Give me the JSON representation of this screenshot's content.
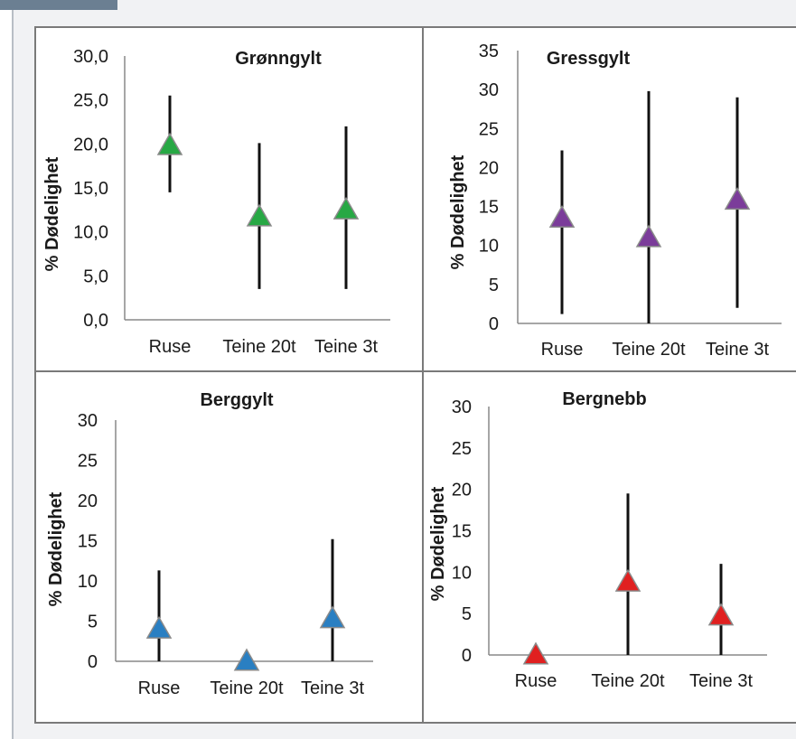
{
  "chart_data": [
    {
      "type": "scatter",
      "title": "Grønngylt",
      "ylabel": "% Dødelighet",
      "categories": [
        "Ruse",
        "Teine 20t",
        "Teine 3t"
      ],
      "ylim": [
        0,
        30
      ],
      "yticks": [
        "0,0",
        "5,0",
        "10,0",
        "15,0",
        "20,0",
        "25,0",
        "30,0"
      ],
      "values": [
        19.8,
        11.7,
        12.5
      ],
      "error_low": [
        14.5,
        3.5,
        3.5
      ],
      "error_high": [
        25.5,
        20.1,
        22.0
      ],
      "marker": "triangle",
      "color": "#27a844"
    },
    {
      "type": "scatter",
      "title": "Gressgylt",
      "ylabel": "% Dødelighet",
      "categories": [
        "Ruse",
        "Teine 20t",
        "Teine 3t"
      ],
      "ylim": [
        0,
        35
      ],
      "yticks": [
        "0",
        "5",
        "10",
        "15",
        "20",
        "25",
        "30",
        "35"
      ],
      "values": [
        13.5,
        11.0,
        15.8
      ],
      "error_low": [
        1.2,
        0.0,
        2.0
      ],
      "error_high": [
        22.2,
        29.8,
        29.0
      ],
      "marker": "triangle",
      "color": "#7b3c9a"
    },
    {
      "type": "scatter",
      "title": "Berggylt",
      "ylabel": "% Dødelighet",
      "categories": [
        "Ruse",
        "Teine 20t",
        "Teine 3t"
      ],
      "ylim": [
        0,
        30
      ],
      "yticks": [
        "0",
        "5",
        "10",
        "15",
        "20",
        "25",
        "30"
      ],
      "values": [
        4.0,
        0.0,
        5.3
      ],
      "error_low": [
        0.0,
        0.0,
        0.0
      ],
      "error_high": [
        11.3,
        0.0,
        15.2
      ],
      "marker": "triangle",
      "color": "#2a7fc2"
    },
    {
      "type": "scatter",
      "title": "Bergnebb",
      "ylabel": "% Dødelighet",
      "categories": [
        "Ruse",
        "Teine 20t",
        "Teine 3t"
      ],
      "ylim": [
        0,
        30
      ],
      "yticks": [
        "0",
        "5",
        "10",
        "15",
        "20",
        "25",
        "30"
      ],
      "values": [
        0.0,
        8.8,
        4.7
      ],
      "error_low": [
        0.0,
        0.0,
        0.0
      ],
      "error_high": [
        0.0,
        19.5,
        11.0
      ],
      "marker": "triangle",
      "color": "#e02020"
    }
  ]
}
